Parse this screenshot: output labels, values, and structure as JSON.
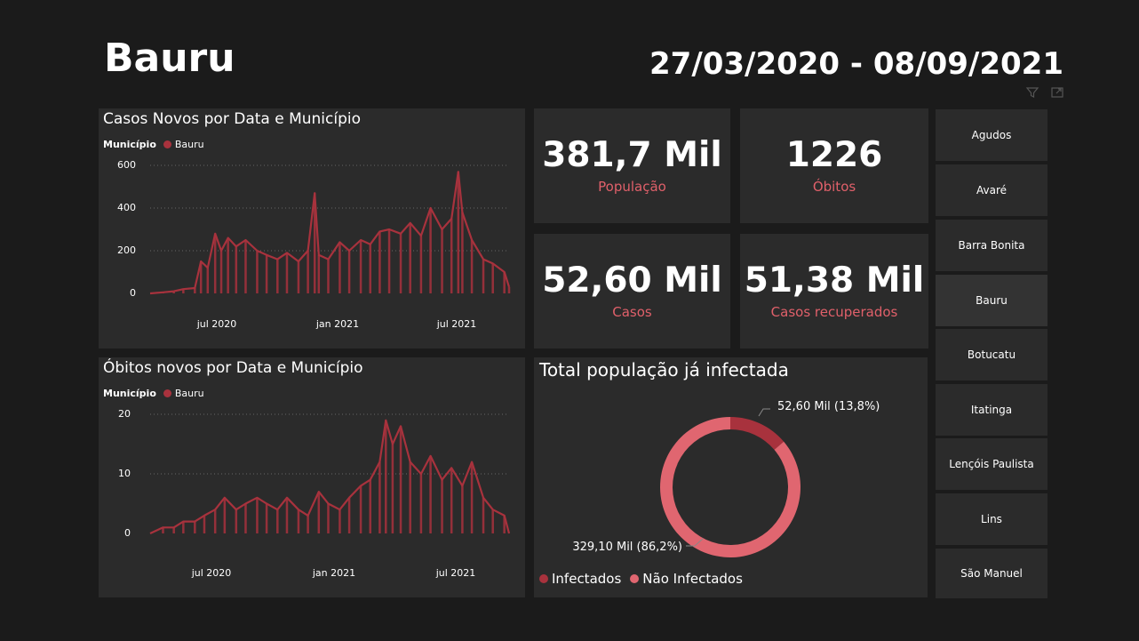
{
  "header": {
    "title": "Bauru",
    "date_range": "27/03/2020 - 08/09/2021"
  },
  "colors": {
    "series": "#a8323d",
    "label": "#e0606a",
    "donut_infected": "#a8323d",
    "donut_not_infected": "#e06670"
  },
  "cases_chart": {
    "title": "Casos Novos por Data e Município",
    "legend_label": "Município",
    "legend_item": "Bauru",
    "y_ticks": [
      "600",
      "400",
      "200",
      "0"
    ],
    "x_ticks": [
      "jul 2020",
      "jan 2021",
      "jul 2021"
    ]
  },
  "deaths_chart": {
    "title": "Óbitos novos por Data e Município",
    "legend_label": "Município",
    "legend_item": "Bauru",
    "y_ticks": [
      "20",
      "10",
      "0"
    ],
    "x_ticks": [
      "jul 2020",
      "jan 2021",
      "jul 2021"
    ]
  },
  "kpis": [
    {
      "value": "381,7 Mil",
      "label": "População"
    },
    {
      "value": "1226",
      "label": "Óbitos"
    },
    {
      "value": "52,60 Mil",
      "label": "Casos"
    },
    {
      "value": "51,38 Mil",
      "label": "Casos recuperados"
    }
  ],
  "donut": {
    "title": "Total população já infectada",
    "infected_label": "52,60 Mil (13,8%)",
    "not_infected_label": "329,10 Mil (86,2%)",
    "legend": [
      "Infectados",
      "Não Infectados"
    ]
  },
  "slicer": {
    "items": [
      "Agudos",
      "Avaré",
      "Barra Bonita",
      "Bauru",
      "Botucatu",
      "Itatinga",
      "Lençóis Paulista",
      "Lins",
      "São Manuel"
    ],
    "selected": "Bauru"
  },
  "chart_data": [
    {
      "type": "line",
      "title": "Casos Novos por Data e Município",
      "xlabel": "",
      "ylabel": "",
      "x_range": [
        "2020-03-27",
        "2021-09-08"
      ],
      "ylim": [
        0,
        600
      ],
      "grid": true,
      "legend_position": "top-left",
      "series": [
        {
          "name": "Bauru",
          "x": [
            "2020-03-27",
            "2020-04-15",
            "2020-05-01",
            "2020-05-15",
            "2020-06-01",
            "2020-06-10",
            "2020-06-20",
            "2020-07-01",
            "2020-07-10",
            "2020-07-20",
            "2020-08-01",
            "2020-08-15",
            "2020-09-01",
            "2020-09-15",
            "2020-10-01",
            "2020-10-15",
            "2020-11-01",
            "2020-11-15",
            "2020-11-25",
            "2020-12-01",
            "2020-12-15",
            "2021-01-01",
            "2021-01-15",
            "2021-02-01",
            "2021-02-15",
            "2021-03-01",
            "2021-03-15",
            "2021-04-01",
            "2021-04-15",
            "2021-05-01",
            "2021-05-15",
            "2021-06-01",
            "2021-06-15",
            "2021-06-25",
            "2021-07-01",
            "2021-07-15",
            "2021-08-01",
            "2021-08-15",
            "2021-09-01",
            "2021-09-08"
          ],
          "values": [
            0,
            5,
            10,
            20,
            25,
            150,
            120,
            280,
            200,
            260,
            220,
            250,
            200,
            180,
            160,
            190,
            150,
            200,
            470,
            180,
            160,
            240,
            200,
            250,
            230,
            290,
            300,
            280,
            330,
            270,
            400,
            300,
            350,
            570,
            380,
            250,
            160,
            140,
            100,
            30
          ]
        }
      ]
    },
    {
      "type": "line",
      "title": "Óbitos novos por Data e Município",
      "xlabel": "",
      "ylabel": "",
      "x_range": [
        "2020-03-27",
        "2021-09-08"
      ],
      "ylim": [
        0,
        20
      ],
      "grid": true,
      "legend_position": "top-left",
      "series": [
        {
          "name": "Bauru",
          "x": [
            "2020-03-27",
            "2020-04-15",
            "2020-05-01",
            "2020-05-15",
            "2020-06-01",
            "2020-06-15",
            "2020-07-01",
            "2020-07-15",
            "2020-08-01",
            "2020-08-15",
            "2020-09-01",
            "2020-09-15",
            "2020-10-01",
            "2020-10-15",
            "2020-11-01",
            "2020-11-15",
            "2020-12-01",
            "2020-12-15",
            "2021-01-01",
            "2021-01-15",
            "2021-02-01",
            "2021-02-15",
            "2021-03-01",
            "2021-03-10",
            "2021-03-20",
            "2021-04-01",
            "2021-04-15",
            "2021-05-01",
            "2021-05-15",
            "2021-06-01",
            "2021-06-15",
            "2021-07-01",
            "2021-07-15",
            "2021-08-01",
            "2021-08-15",
            "2021-09-01",
            "2021-09-08"
          ],
          "values": [
            0,
            1,
            1,
            2,
            2,
            3,
            4,
            6,
            4,
            5,
            6,
            5,
            4,
            6,
            4,
            3,
            7,
            5,
            4,
            6,
            8,
            9,
            12,
            19,
            15,
            18,
            12,
            10,
            13,
            9,
            11,
            8,
            12,
            6,
            4,
            3,
            0
          ]
        }
      ]
    },
    {
      "type": "pie",
      "title": "Total população já infectada",
      "categories": [
        "Infectados",
        "Não Infectados"
      ],
      "values": [
        52.6,
        329.1
      ],
      "percent": [
        13.8,
        86.2
      ],
      "legend_position": "bottom-left"
    }
  ]
}
